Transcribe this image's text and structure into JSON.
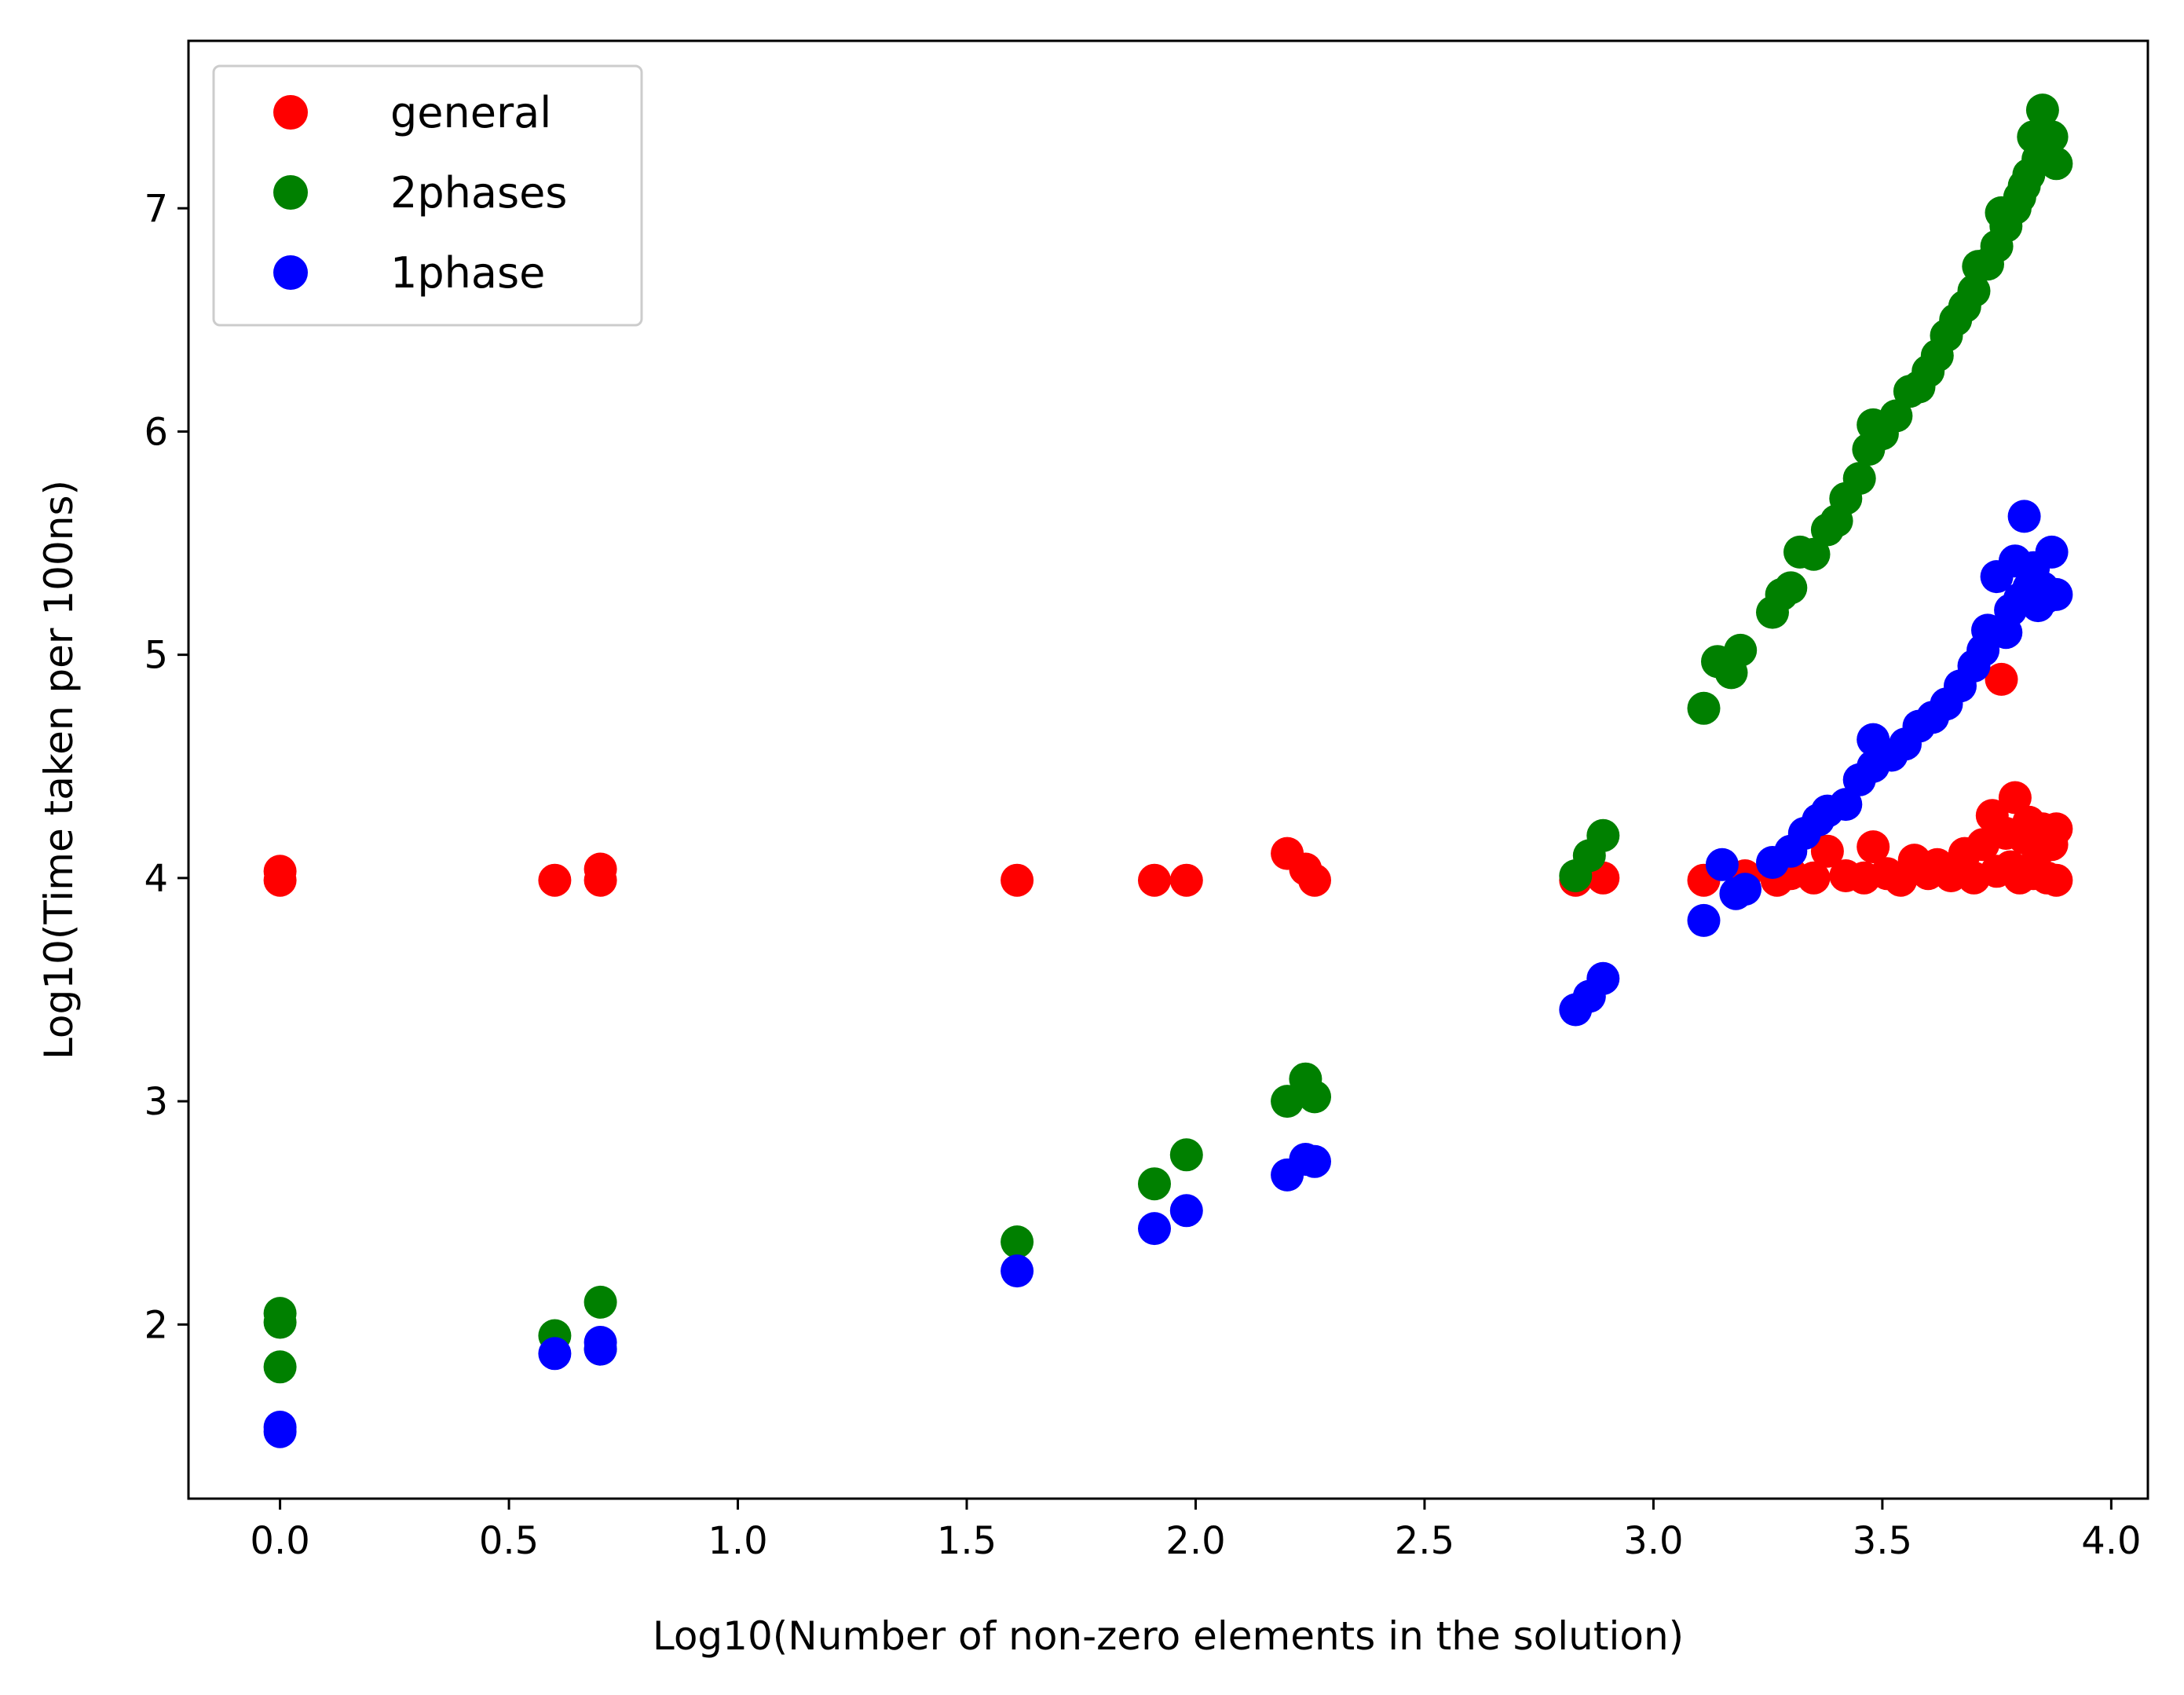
{
  "chart_data": {
    "type": "scatter",
    "xlabel": "Log10(Number of non-zero elements in the solution)",
    "ylabel": "Log10(Time taken per 100ns)",
    "xlim": [
      -0.2,
      4.08
    ],
    "ylim": [
      1.22,
      7.75
    ],
    "x_ticks": [
      0.0,
      0.5,
      1.0,
      1.5,
      2.0,
      2.5,
      3.0,
      3.5,
      4.0
    ],
    "x_tick_labels": [
      "0.0",
      "0.5",
      "1.0",
      "1.5",
      "2.0",
      "2.5",
      "3.0",
      "3.5",
      "4.0"
    ],
    "y_ticks": [
      2,
      3,
      4,
      5,
      6,
      7
    ],
    "y_tick_labels": [
      "2",
      "3",
      "4",
      "5",
      "6",
      "7"
    ],
    "grid": false,
    "legend_position": "top-left",
    "series": [
      {
        "name": "general",
        "color": "#ff0000",
        "points": [
          [
            0.0,
            4.03
          ],
          [
            0.0,
            3.99
          ],
          [
            0.6,
            3.99
          ],
          [
            0.7,
            4.04
          ],
          [
            0.7,
            3.99
          ],
          [
            1.61,
            3.99
          ],
          [
            1.91,
            3.99
          ],
          [
            1.98,
            3.99
          ],
          [
            2.2,
            4.11
          ],
          [
            2.24,
            4.04
          ],
          [
            2.26,
            3.99
          ],
          [
            2.83,
            3.99
          ],
          [
            2.89,
            4.0
          ],
          [
            3.11,
            3.99
          ],
          [
            3.2,
            4.01
          ],
          [
            3.27,
            3.99
          ],
          [
            3.3,
            4.02
          ],
          [
            3.35,
            4.0
          ],
          [
            3.38,
            4.12
          ],
          [
            3.42,
            4.01
          ],
          [
            3.46,
            4.0
          ],
          [
            3.48,
            4.14
          ],
          [
            3.51,
            4.02
          ],
          [
            3.54,
            3.99
          ],
          [
            3.57,
            4.08
          ],
          [
            3.6,
            4.02
          ],
          [
            3.62,
            4.06
          ],
          [
            3.65,
            4.01
          ],
          [
            3.68,
            4.11
          ],
          [
            3.7,
            4.0
          ],
          [
            3.72,
            4.15
          ],
          [
            3.74,
            4.28
          ],
          [
            3.75,
            4.03
          ],
          [
            3.76,
            4.89
          ],
          [
            3.77,
            4.2
          ],
          [
            3.78,
            4.05
          ],
          [
            3.79,
            4.36
          ],
          [
            3.8,
            4.0
          ],
          [
            3.81,
            4.18
          ],
          [
            3.82,
            4.25
          ],
          [
            3.83,
            4.02
          ],
          [
            3.84,
            4.12
          ],
          [
            3.85,
            4.22
          ],
          [
            3.86,
            4.0
          ],
          [
            3.87,
            4.15
          ],
          [
            3.88,
            4.22
          ],
          [
            3.88,
            3.99
          ]
        ]
      },
      {
        "name": "2phases",
        "color": "#008000",
        "points": [
          [
            0.0,
            2.05
          ],
          [
            0.0,
            2.01
          ],
          [
            0.0,
            1.81
          ],
          [
            0.6,
            1.95
          ],
          [
            0.7,
            2.1
          ],
          [
            0.7,
            1.89
          ],
          [
            1.61,
            2.37
          ],
          [
            1.91,
            2.63
          ],
          [
            1.98,
            2.76
          ],
          [
            2.2,
            3.0
          ],
          [
            2.24,
            3.1
          ],
          [
            2.26,
            3.02
          ],
          [
            2.83,
            4.01
          ],
          [
            2.86,
            4.1
          ],
          [
            2.89,
            4.19
          ],
          [
            3.11,
            4.76
          ],
          [
            3.14,
            4.97
          ],
          [
            3.17,
            4.92
          ],
          [
            3.19,
            5.02
          ],
          [
            3.26,
            5.19
          ],
          [
            3.28,
            5.27
          ],
          [
            3.3,
            5.3
          ],
          [
            3.32,
            5.46
          ],
          [
            3.35,
            5.45
          ],
          [
            3.38,
            5.56
          ],
          [
            3.4,
            5.6
          ],
          [
            3.42,
            5.7
          ],
          [
            3.45,
            5.79
          ],
          [
            3.47,
            5.92
          ],
          [
            3.48,
            6.03
          ],
          [
            3.5,
            5.99
          ],
          [
            3.53,
            6.07
          ],
          [
            3.56,
            6.18
          ],
          [
            3.58,
            6.2
          ],
          [
            3.6,
            6.27
          ],
          [
            3.62,
            6.34
          ],
          [
            3.64,
            6.43
          ],
          [
            3.66,
            6.5
          ],
          [
            3.68,
            6.56
          ],
          [
            3.7,
            6.63
          ],
          [
            3.71,
            6.74
          ],
          [
            3.73,
            6.75
          ],
          [
            3.75,
            6.83
          ],
          [
            3.76,
            6.98
          ],
          [
            3.77,
            6.92
          ],
          [
            3.79,
            7.0
          ],
          [
            3.8,
            7.05
          ],
          [
            3.81,
            7.1
          ],
          [
            3.82,
            7.15
          ],
          [
            3.83,
            7.32
          ],
          [
            3.84,
            7.22
          ],
          [
            3.85,
            7.44
          ],
          [
            3.86,
            7.25
          ],
          [
            3.87,
            7.32
          ],
          [
            3.88,
            7.2
          ]
        ]
      },
      {
        "name": "1phase",
        "color": "#0000ff",
        "points": [
          [
            0.0,
            1.54
          ],
          [
            0.0,
            1.52
          ],
          [
            0.6,
            1.87
          ],
          [
            0.7,
            1.92
          ],
          [
            0.7,
            1.89
          ],
          [
            1.61,
            2.24
          ],
          [
            1.91,
            2.43
          ],
          [
            1.98,
            2.51
          ],
          [
            2.2,
            2.67
          ],
          [
            2.24,
            2.74
          ],
          [
            2.26,
            2.73
          ],
          [
            2.83,
            3.41
          ],
          [
            2.86,
            3.47
          ],
          [
            2.89,
            3.55
          ],
          [
            3.11,
            3.81
          ],
          [
            3.15,
            4.06
          ],
          [
            3.18,
            3.93
          ],
          [
            3.2,
            3.95
          ],
          [
            3.26,
            4.07
          ],
          [
            3.3,
            4.12
          ],
          [
            3.33,
            4.2
          ],
          [
            3.36,
            4.26
          ],
          [
            3.38,
            4.3
          ],
          [
            3.42,
            4.33
          ],
          [
            3.45,
            4.44
          ],
          [
            3.48,
            4.5
          ],
          [
            3.48,
            4.62
          ],
          [
            3.52,
            4.55
          ],
          [
            3.55,
            4.6
          ],
          [
            3.58,
            4.68
          ],
          [
            3.61,
            4.72
          ],
          [
            3.64,
            4.78
          ],
          [
            3.67,
            4.86
          ],
          [
            3.7,
            4.95
          ],
          [
            3.72,
            5.02
          ],
          [
            3.73,
            5.11
          ],
          [
            3.75,
            5.35
          ],
          [
            3.77,
            5.1
          ],
          [
            3.78,
            5.2
          ],
          [
            3.79,
            5.42
          ],
          [
            3.8,
            5.25
          ],
          [
            3.81,
            5.62
          ],
          [
            3.82,
            5.3
          ],
          [
            3.83,
            5.39
          ],
          [
            3.84,
            5.22
          ],
          [
            3.85,
            5.3
          ],
          [
            3.86,
            5.26
          ],
          [
            3.87,
            5.46
          ],
          [
            3.88,
            5.27
          ]
        ]
      }
    ]
  }
}
